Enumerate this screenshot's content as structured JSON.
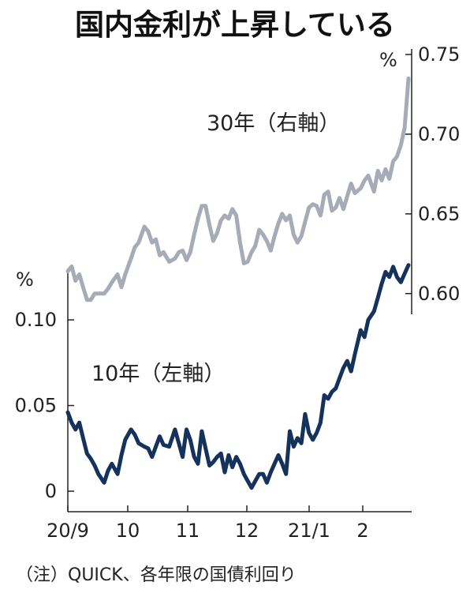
{
  "chart_data": {
    "type": "line",
    "title": "国内金利が上昇している",
    "note": "（注）QUICK、各年限の国債利回り",
    "x_tick_labels": [
      "20/9",
      "10",
      "11",
      "12",
      "21/1",
      "2"
    ],
    "left_axis": {
      "unit": "%",
      "ylim": [
        0,
        0.13
      ],
      "tick_labels": [
        "0.10",
        "0.05",
        "0"
      ],
      "tick_values": [
        0.1,
        0.05,
        0
      ]
    },
    "right_axis": {
      "unit": "%",
      "ylim": [
        0.587,
        0.75
      ],
      "tick_labels": [
        "0.75",
        "0.70",
        "0.65",
        "0.60"
      ],
      "tick_values": [
        0.75,
        0.7,
        0.65,
        0.6
      ]
    },
    "grid": false,
    "series": [
      {
        "name": "30年（右軸）",
        "axis": "right",
        "color": "#a7abb8",
        "x": [
          "2020-09-01",
          "2020-09-03",
          "2020-09-05",
          "2020-09-07",
          "2020-09-09",
          "2020-09-11",
          "2020-09-13",
          "2020-09-15",
          "2020-09-17",
          "2020-09-20",
          "2020-09-22",
          "2020-09-24",
          "2020-09-27",
          "2020-09-29",
          "2020-10-01",
          "2020-10-04",
          "2020-10-06",
          "2020-10-08",
          "2020-10-11",
          "2020-10-13",
          "2020-10-15",
          "2020-10-17",
          "2020-10-19",
          "2020-10-21",
          "2020-10-24",
          "2020-10-27",
          "2020-10-29",
          "2020-10-31",
          "2020-11-02",
          "2020-11-04",
          "2020-11-06",
          "2020-11-08",
          "2020-11-10",
          "2020-11-12",
          "2020-11-14",
          "2020-11-16",
          "2020-11-18",
          "2020-11-20",
          "2020-11-22",
          "2020-11-24",
          "2020-11-26",
          "2020-11-28",
          "2020-11-30",
          "2020-12-02",
          "2020-12-04",
          "2020-12-06",
          "2020-12-08",
          "2020-12-10",
          "2020-12-12",
          "2020-12-14",
          "2020-12-16",
          "2020-12-18",
          "2020-12-20",
          "2020-12-22",
          "2020-12-24",
          "2020-12-26",
          "2020-12-28",
          "2020-12-30",
          "2021-01-01",
          "2021-01-03",
          "2021-01-05",
          "2021-01-07",
          "2021-01-09",
          "2021-01-11",
          "2021-01-13",
          "2021-01-15",
          "2021-01-17",
          "2021-01-19",
          "2021-01-21",
          "2021-01-23",
          "2021-01-25",
          "2021-01-27",
          "2021-01-29",
          "2021-02-01",
          "2021-02-03",
          "2021-02-05",
          "2021-02-08",
          "2021-02-10",
          "2021-02-12",
          "2021-02-14",
          "2021-02-16",
          "2021-02-18",
          "2021-02-20",
          "2021-02-22",
          "2021-02-24",
          "2021-02-26"
        ],
        "y": [
          0.614,
          0.617,
          0.608,
          0.612,
          0.604,
          0.596,
          0.596,
          0.6,
          0.6,
          0.6,
          0.603,
          0.607,
          0.612,
          0.604,
          0.612,
          0.622,
          0.629,
          0.632,
          0.642,
          0.639,
          0.632,
          0.634,
          0.624,
          0.626,
          0.62,
          0.622,
          0.626,
          0.627,
          0.621,
          0.626,
          0.637,
          0.647,
          0.655,
          0.655,
          0.643,
          0.633,
          0.638,
          0.646,
          0.649,
          0.647,
          0.653,
          0.649,
          0.632,
          0.619,
          0.62,
          0.626,
          0.63,
          0.64,
          0.637,
          0.633,
          0.627,
          0.636,
          0.644,
          0.65,
          0.646,
          0.649,
          0.637,
          0.632,
          0.636,
          0.645,
          0.654,
          0.656,
          0.655,
          0.649,
          0.662,
          0.664,
          0.652,
          0.654,
          0.66,
          0.653,
          0.661,
          0.669,
          0.663,
          0.666,
          0.671,
          0.674,
          0.664,
          0.677,
          0.671,
          0.678,
          0.672,
          0.683,
          0.686,
          0.693,
          0.704,
          0.735
        ]
      },
      {
        "name": "10年（左軸）",
        "axis": "left",
        "color": "#14325c",
        "x": [
          "2020-09-01",
          "2020-09-03",
          "2020-09-05",
          "2020-09-07",
          "2020-09-09",
          "2020-09-11",
          "2020-09-13",
          "2020-09-15",
          "2020-09-17",
          "2020-09-20",
          "2020-09-22",
          "2020-09-24",
          "2020-09-27",
          "2020-09-29",
          "2020-10-01",
          "2020-10-04",
          "2020-10-06",
          "2020-10-08",
          "2020-10-11",
          "2020-10-13",
          "2020-10-15",
          "2020-10-17",
          "2020-10-19",
          "2020-10-21",
          "2020-10-24",
          "2020-10-27",
          "2020-10-29",
          "2020-10-31",
          "2020-11-02",
          "2020-11-04",
          "2020-11-06",
          "2020-11-08",
          "2020-11-10",
          "2020-11-12",
          "2020-11-14",
          "2020-11-16",
          "2020-11-18",
          "2020-11-20",
          "2020-11-22",
          "2020-11-24",
          "2020-11-26",
          "2020-11-28",
          "2020-11-30",
          "2020-12-02",
          "2020-12-04",
          "2020-12-06",
          "2020-12-08",
          "2020-12-10",
          "2020-12-12",
          "2020-12-14",
          "2020-12-16",
          "2020-12-18",
          "2020-12-20",
          "2020-12-22",
          "2020-12-24",
          "2020-12-26",
          "2020-12-28",
          "2020-12-30",
          "2021-01-01",
          "2021-01-03",
          "2021-01-05",
          "2021-01-07",
          "2021-01-09",
          "2021-01-11",
          "2021-01-13",
          "2021-01-15",
          "2021-01-17",
          "2021-01-19",
          "2021-01-21",
          "2021-01-23",
          "2021-01-25",
          "2021-01-27",
          "2021-01-29",
          "2021-02-01",
          "2021-02-03",
          "2021-02-05",
          "2021-02-08",
          "2021-02-10",
          "2021-02-12",
          "2021-02-14",
          "2021-02-16",
          "2021-02-18",
          "2021-02-20",
          "2021-02-22",
          "2021-02-24",
          "2021-02-26"
        ],
        "y": [
          0.046,
          0.04,
          0.036,
          0.04,
          0.031,
          0.022,
          0.019,
          0.015,
          0.01,
          0.005,
          0.012,
          0.016,
          0.01,
          0.021,
          0.03,
          0.036,
          0.033,
          0.028,
          0.026,
          0.025,
          0.02,
          0.026,
          0.032,
          0.027,
          0.026,
          0.036,
          0.028,
          0.02,
          0.036,
          0.03,
          0.02,
          0.016,
          0.035,
          0.025,
          0.015,
          0.017,
          0.02,
          0.022,
          0.011,
          0.021,
          0.014,
          0.02,
          0.016,
          0.01,
          0.006,
          0.002,
          0.006,
          0.01,
          0.01,
          0.005,
          0.011,
          0.016,
          0.021,
          0.016,
          0.01,
          0.035,
          0.026,
          0.031,
          0.028,
          0.045,
          0.034,
          0.03,
          0.034,
          0.04,
          0.056,
          0.054,
          0.058,
          0.06,
          0.066,
          0.072,
          0.076,
          0.07,
          0.08,
          0.094,
          0.09,
          0.1,
          0.105,
          0.113,
          0.121,
          0.128,
          0.125,
          0.131,
          0.125,
          0.122,
          0.127,
          0.132
        ]
      }
    ]
  },
  "labels": {
    "series_30y": "30年（右軸）",
    "series_10y": "10年（左軸）"
  }
}
